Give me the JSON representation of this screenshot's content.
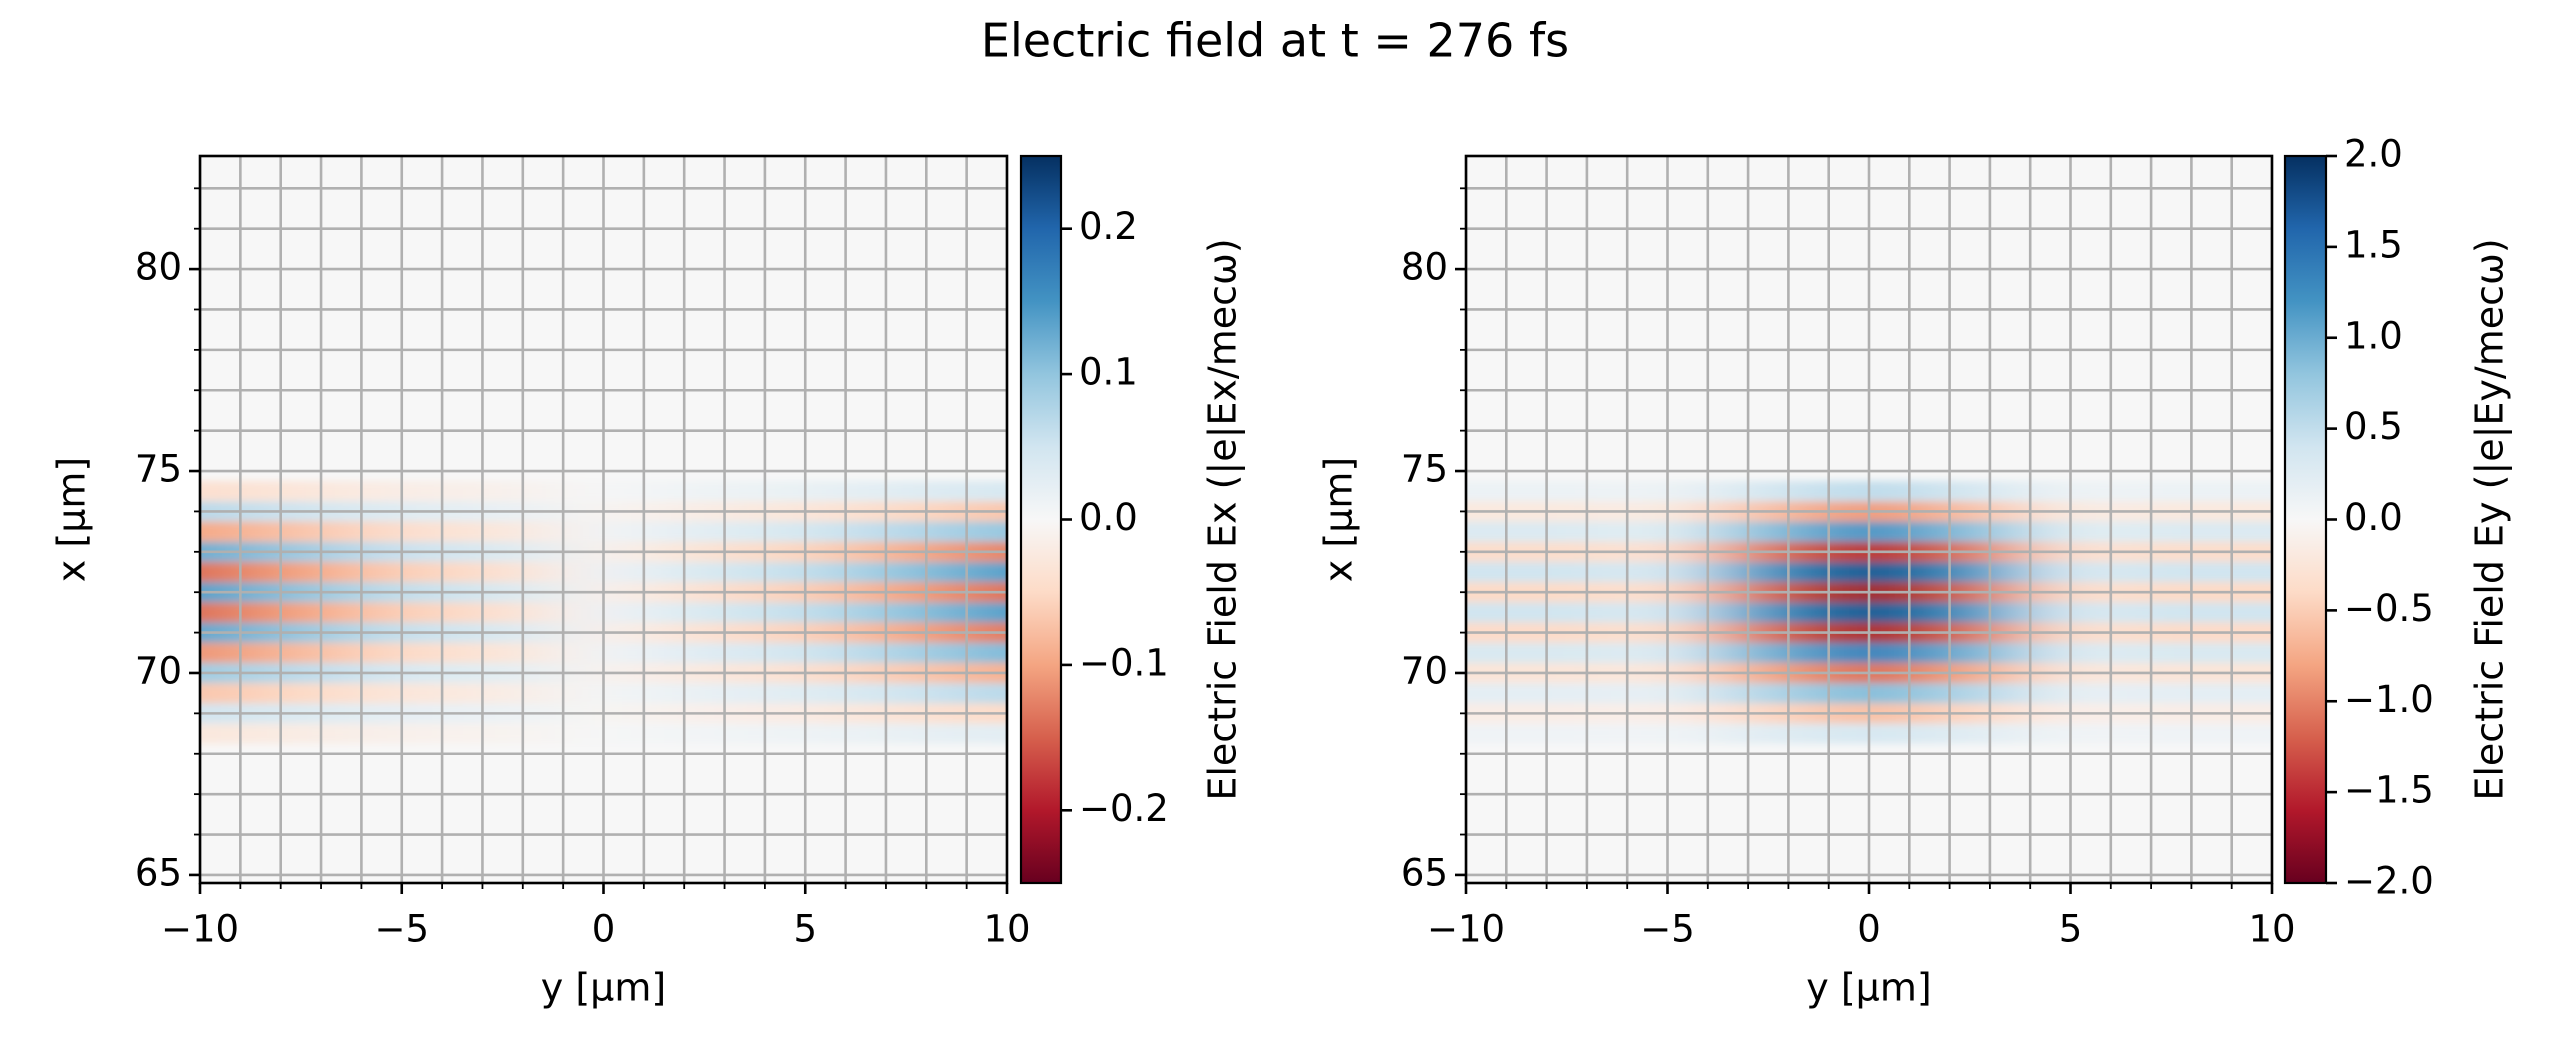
{
  "title": "Electric field at t = 276 fs",
  "chart_data": [
    {
      "type": "heatmap",
      "cmap": "RdBu_r",
      "grid": true,
      "xlabel": "y [µm]",
      "ylabel": "x [µm]",
      "colorbar_label": "Electric Field Ex (|e|Ex/mecω)",
      "xlim": [
        -10,
        10
      ],
      "ylim": [
        64.8,
        82.8
      ],
      "xticks": [
        {
          "value": -10,
          "label": "−10"
        },
        {
          "value": -5,
          "label": "−5"
        },
        0,
        5,
        10
      ],
      "yticks": [
        65,
        70,
        75,
        80
      ],
      "xminorticks": [
        -10,
        -9,
        -8,
        -7,
        -6,
        -5,
        -4,
        -3,
        -2,
        -1,
        0,
        1,
        2,
        3,
        4,
        5,
        6,
        7,
        8,
        9,
        10
      ],
      "yminorticks": [
        65,
        66,
        67,
        68,
        69,
        70,
        71,
        72,
        73,
        74,
        75,
        76,
        77,
        78,
        79,
        80,
        81,
        82
      ],
      "clim": [
        -0.25,
        0.25
      ],
      "cticks": [
        {
          "value": -0.2,
          "label": "−0.2"
        },
        {
          "value": -0.1,
          "label": "−0.1"
        },
        {
          "value": 0,
          "label": "0.0"
        },
        0.1,
        0.2
      ],
      "x": [
        -10,
        -7.5,
        -5,
        -2.5,
        0,
        2.5,
        5,
        7.5,
        10
      ],
      "y": [
        68.5,
        69,
        69.5,
        70,
        70.5,
        71,
        71.5,
        72,
        72.5,
        73,
        73.5,
        74,
        74.5
      ],
      "values": [
        [
          -0.028,
          -0.02,
          -0.012,
          -0.008,
          0.002,
          0.008,
          0.012,
          0.02,
          0.028
        ],
        [
          0.049,
          0.035,
          0.021,
          0.014,
          -0.004,
          -0.014,
          -0.021,
          -0.035,
          -0.049
        ],
        [
          -0.07,
          -0.05,
          -0.03,
          -0.02,
          0.005,
          0.02,
          0.03,
          0.05,
          0.07
        ],
        [
          0.091,
          0.065,
          0.039,
          0.026,
          -0.007,
          -0.026,
          -0.039,
          -0.065,
          -0.091
        ],
        [
          -0.112,
          -0.08,
          -0.048,
          -0.032,
          0.008,
          0.032,
          0.048,
          0.08,
          0.112
        ],
        [
          0.133,
          0.095,
          0.057,
          0.038,
          -0.01,
          -0.038,
          -0.057,
          -0.095,
          -0.133
        ],
        [
          -0.14,
          -0.1,
          -0.06,
          -0.04,
          0.01,
          0.04,
          0.06,
          0.1,
          0.14
        ],
        [
          0.14,
          0.1,
          0.06,
          0.04,
          -0.01,
          -0.04,
          -0.06,
          -0.1,
          -0.14
        ],
        [
          -0.14,
          -0.1,
          -0.06,
          -0.04,
          0.01,
          0.04,
          0.06,
          0.1,
          0.14
        ],
        [
          0.126,
          0.09,
          0.054,
          0.036,
          -0.009,
          -0.036,
          -0.054,
          -0.09,
          -0.126
        ],
        [
          -0.098,
          -0.07,
          -0.042,
          -0.028,
          0.007,
          0.028,
          0.042,
          0.07,
          0.098
        ],
        [
          0.07,
          0.05,
          0.03,
          0.02,
          -0.005,
          -0.02,
          -0.03,
          -0.05,
          -0.07
        ],
        [
          -0.042,
          -0.03,
          -0.018,
          -0.012,
          0.003,
          0.012,
          0.018,
          0.03,
          0.042
        ]
      ]
    },
    {
      "type": "heatmap",
      "cmap": "RdBu_r",
      "grid": true,
      "xlabel": "y [µm]",
      "ylabel": "x [µm]",
      "colorbar_label": "Electric Field Ey (|e|Ey/mecω)",
      "xlim": [
        -10,
        10
      ],
      "ylim": [
        64.8,
        82.8
      ],
      "xticks": [
        {
          "value": -10,
          "label": "−10"
        },
        {
          "value": -5,
          "label": "−5"
        },
        0,
        5,
        10
      ],
      "yticks": [
        65,
        70,
        75,
        80
      ],
      "xminorticks": [
        -10,
        -9,
        -8,
        -7,
        -6,
        -5,
        -4,
        -3,
        -2,
        -1,
        0,
        1,
        2,
        3,
        4,
        5,
        6,
        7,
        8,
        9,
        10
      ],
      "yminorticks": [
        65,
        66,
        67,
        68,
        69,
        70,
        71,
        72,
        73,
        74,
        75,
        76,
        77,
        78,
        79,
        80,
        81,
        82
      ],
      "clim": [
        -2,
        2
      ],
      "cticks": [
        {
          "value": -2,
          "label": "−2.0"
        },
        {
          "value": -1.5,
          "label": "−1.5"
        },
        {
          "value": -1,
          "label": "−1.0"
        },
        {
          "value": -0.5,
          "label": "−0.5"
        },
        {
          "value": 0,
          "label": "0.0"
        },
        0.5,
        {
          "value": 1,
          "label": "1.0"
        },
        1.5,
        {
          "value": 2,
          "label": "2.0"
        }
      ],
      "x": [
        -10,
        -7.5,
        -5,
        -2.5,
        0,
        2.5,
        5,
        7.5,
        10
      ],
      "y": [
        68.5,
        69,
        69.5,
        70,
        70.5,
        71,
        71.5,
        72,
        72.5,
        73,
        73.5,
        74,
        74.5
      ],
      "values": [
        [
          0.08,
          0.08,
          0.06,
          0.24,
          0.36,
          0.24,
          0.06,
          0.08,
          0.08
        ],
        [
          -0.14,
          -0.14,
          -0.11,
          -0.42,
          -0.63,
          -0.42,
          -0.11,
          -0.14,
          -0.14
        ],
        [
          0.2,
          0.2,
          0.15,
          0.6,
          0.9,
          0.6,
          0.15,
          0.2,
          0.2
        ],
        [
          -0.26,
          -0.26,
          -0.2,
          -0.78,
          -1.17,
          -0.78,
          -0.2,
          -0.26,
          -0.26
        ],
        [
          0.32,
          0.32,
          0.24,
          0.96,
          1.44,
          0.96,
          0.24,
          0.32,
          0.32
        ],
        [
          -0.38,
          -0.38,
          -0.29,
          -1.14,
          -1.71,
          -1.14,
          -0.29,
          -0.38,
          -0.38
        ],
        [
          0.4,
          0.4,
          0.3,
          1.2,
          1.8,
          1.2,
          0.3,
          0.4,
          0.4
        ],
        [
          -0.4,
          -0.4,
          -0.3,
          -1.2,
          -1.8,
          -1.2,
          -0.3,
          -0.4,
          -0.4
        ],
        [
          0.4,
          0.4,
          0.3,
          1.2,
          1.8,
          1.2,
          0.3,
          0.4,
          0.4
        ],
        [
          -0.36,
          -0.36,
          -0.27,
          -1.08,
          -1.62,
          -1.08,
          -0.27,
          -0.36,
          -0.36
        ],
        [
          0.28,
          0.28,
          0.21,
          0.84,
          1.26,
          0.84,
          0.21,
          0.28,
          0.28
        ],
        [
          -0.2,
          -0.2,
          -0.15,
          -0.6,
          -0.9,
          -0.6,
          -0.15,
          -0.2,
          -0.2
        ],
        [
          0.12,
          0.12,
          0.09,
          0.36,
          0.54,
          0.36,
          0.09,
          0.12,
          0.12
        ]
      ]
    }
  ]
}
